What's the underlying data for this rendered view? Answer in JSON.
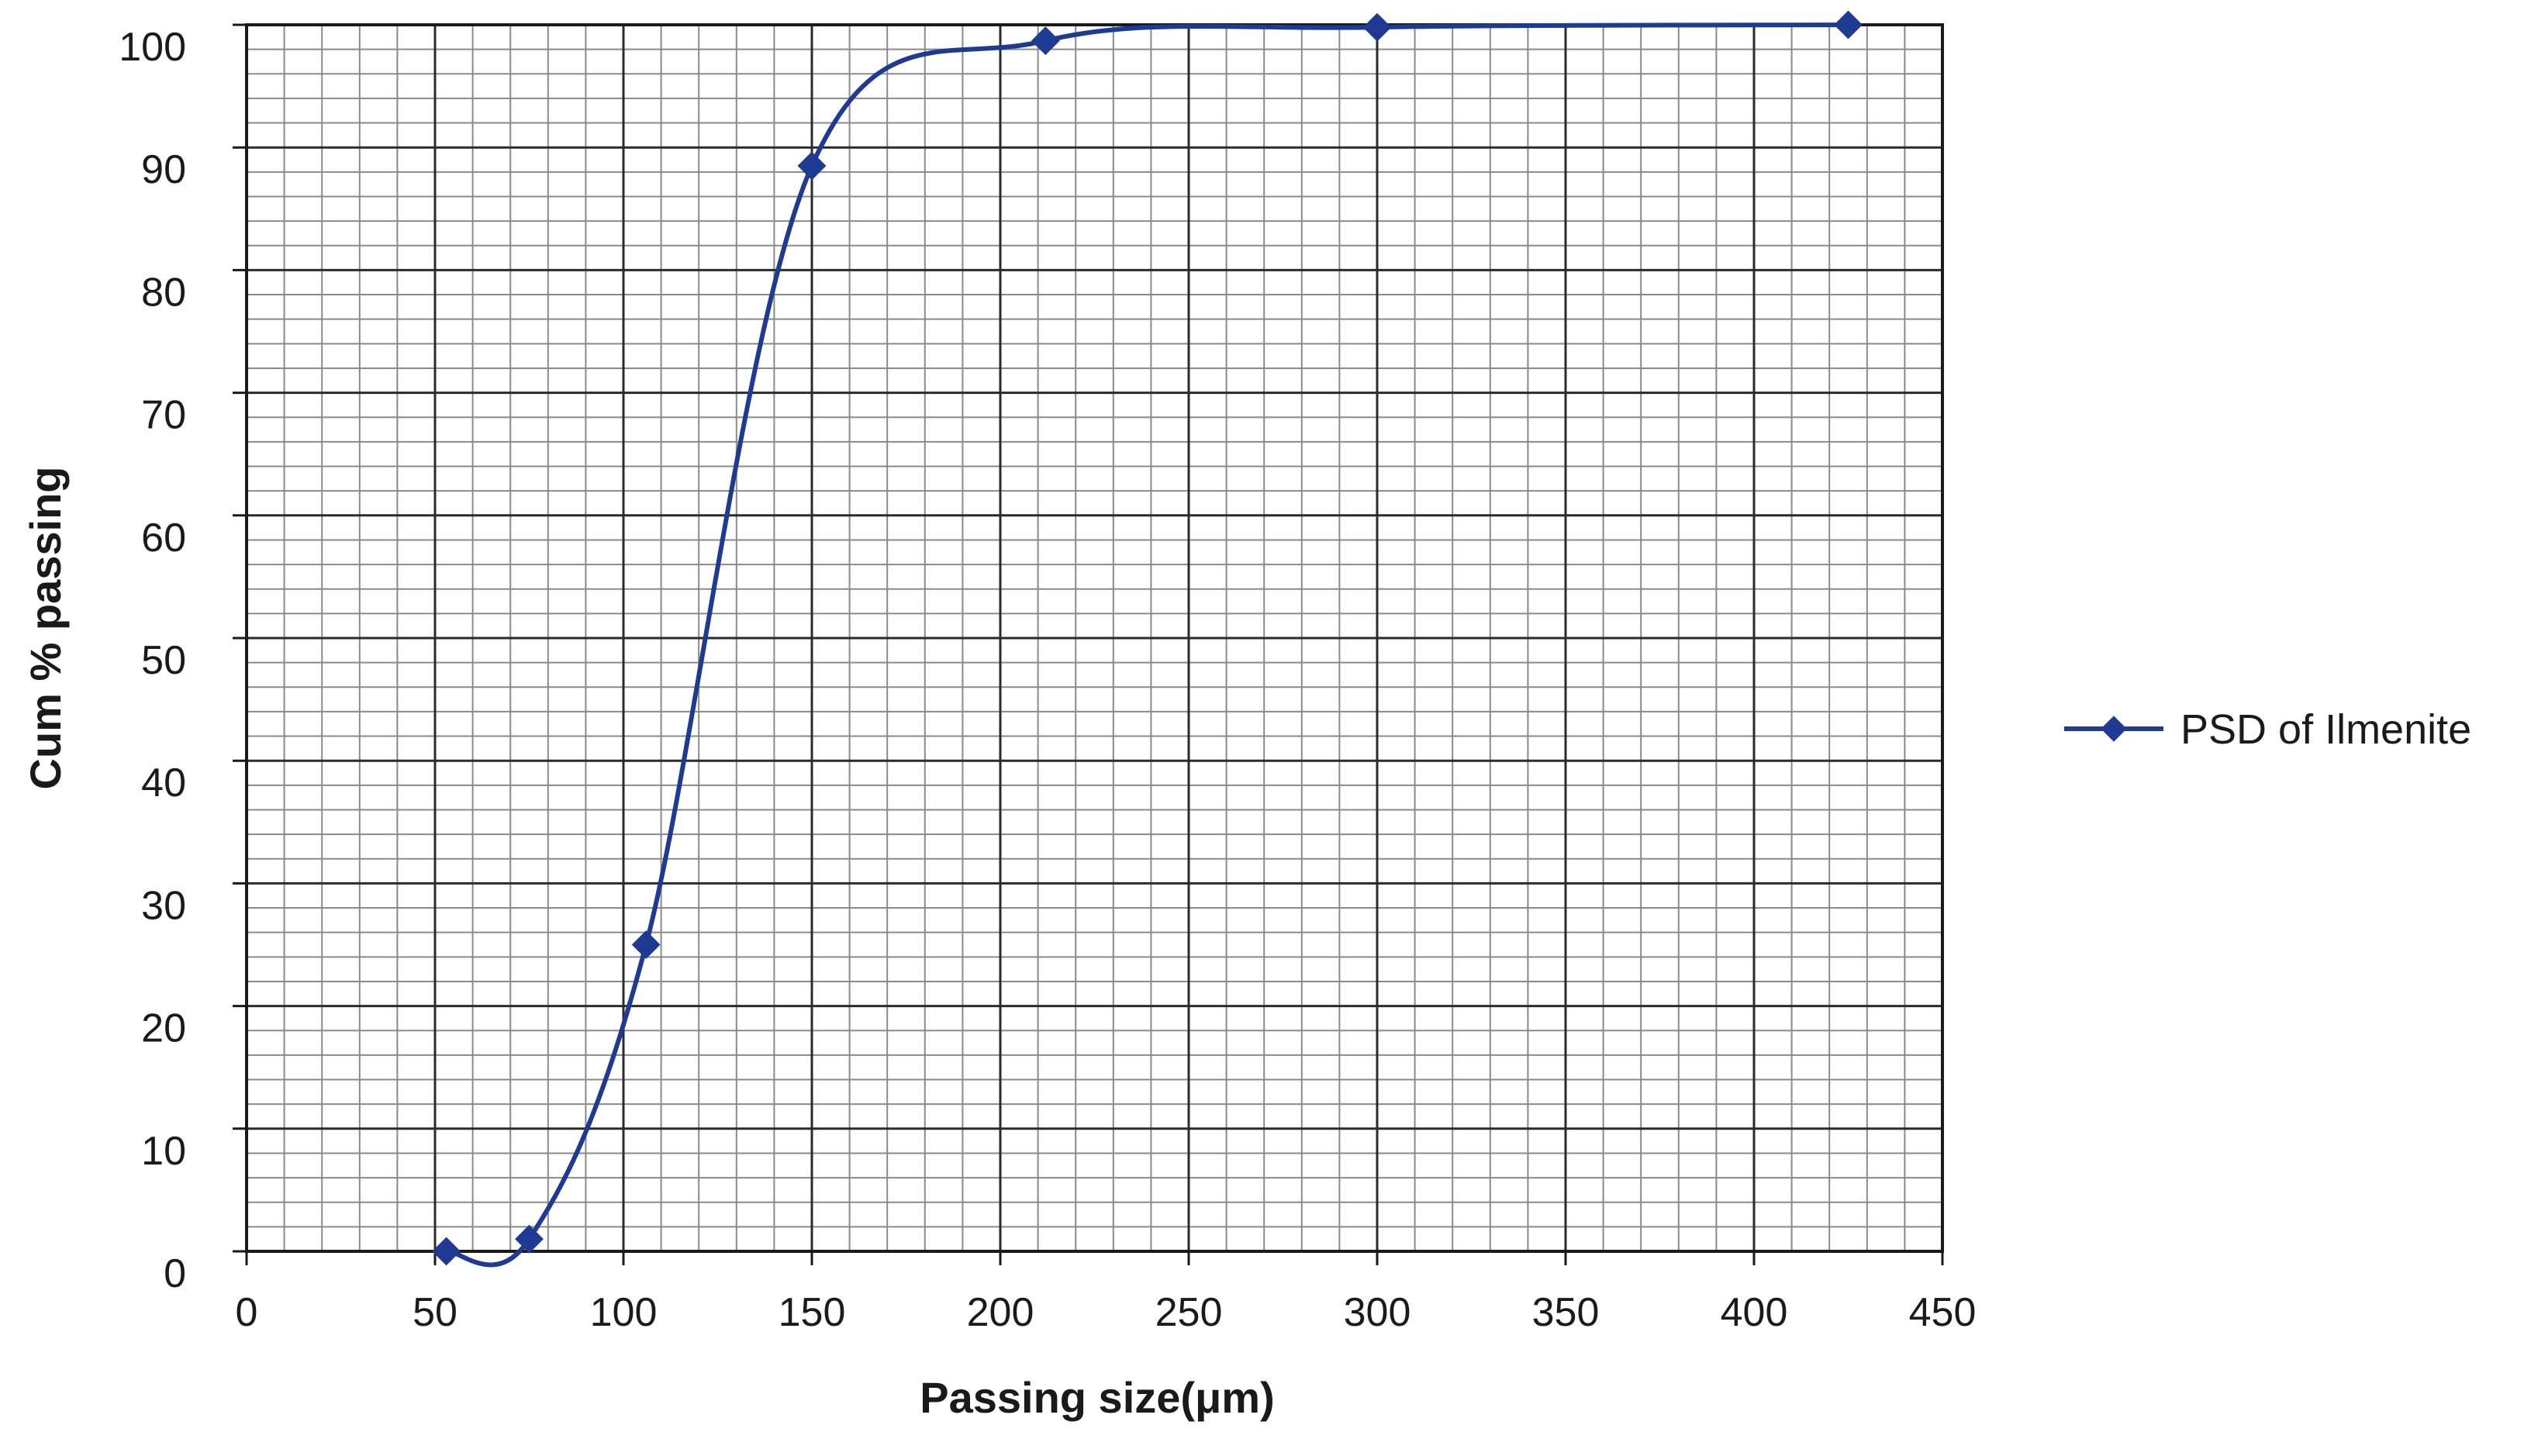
{
  "chart_data": {
    "type": "scatter",
    "title": "",
    "xlabel": "Passing size(μm)",
    "ylabel": "Cum % passing",
    "xlim": [
      0,
      450
    ],
    "ylim": [
      0,
      100
    ],
    "xticks": [
      0,
      50,
      100,
      150,
      200,
      250,
      300,
      350,
      400,
      450
    ],
    "yticks": [
      0,
      10,
      20,
      30,
      40,
      50,
      60,
      70,
      80,
      90,
      100
    ],
    "x_tick_labels": [
      "0",
      "50",
      "100",
      "150",
      "200",
      "250",
      "300",
      "350",
      "400",
      "450"
    ],
    "y_tick_labels": [
      "0",
      "10",
      "20",
      "30",
      "40",
      "50",
      "60",
      "70",
      "80",
      "90",
      "100"
    ],
    "grid": true,
    "minor_x_step": 10,
    "minor_y_step": 2,
    "legend_position": "right",
    "series": [
      {
        "name": "PSD of Ilmenite",
        "color": "#1f3a93",
        "line_style": "smooth",
        "marker": "diamond",
        "x": [
          53,
          75,
          106,
          150,
          212,
          300,
          425
        ],
        "y": [
          0,
          1,
          25,
          88.5,
          98.7,
          99.8,
          100
        ]
      }
    ]
  }
}
